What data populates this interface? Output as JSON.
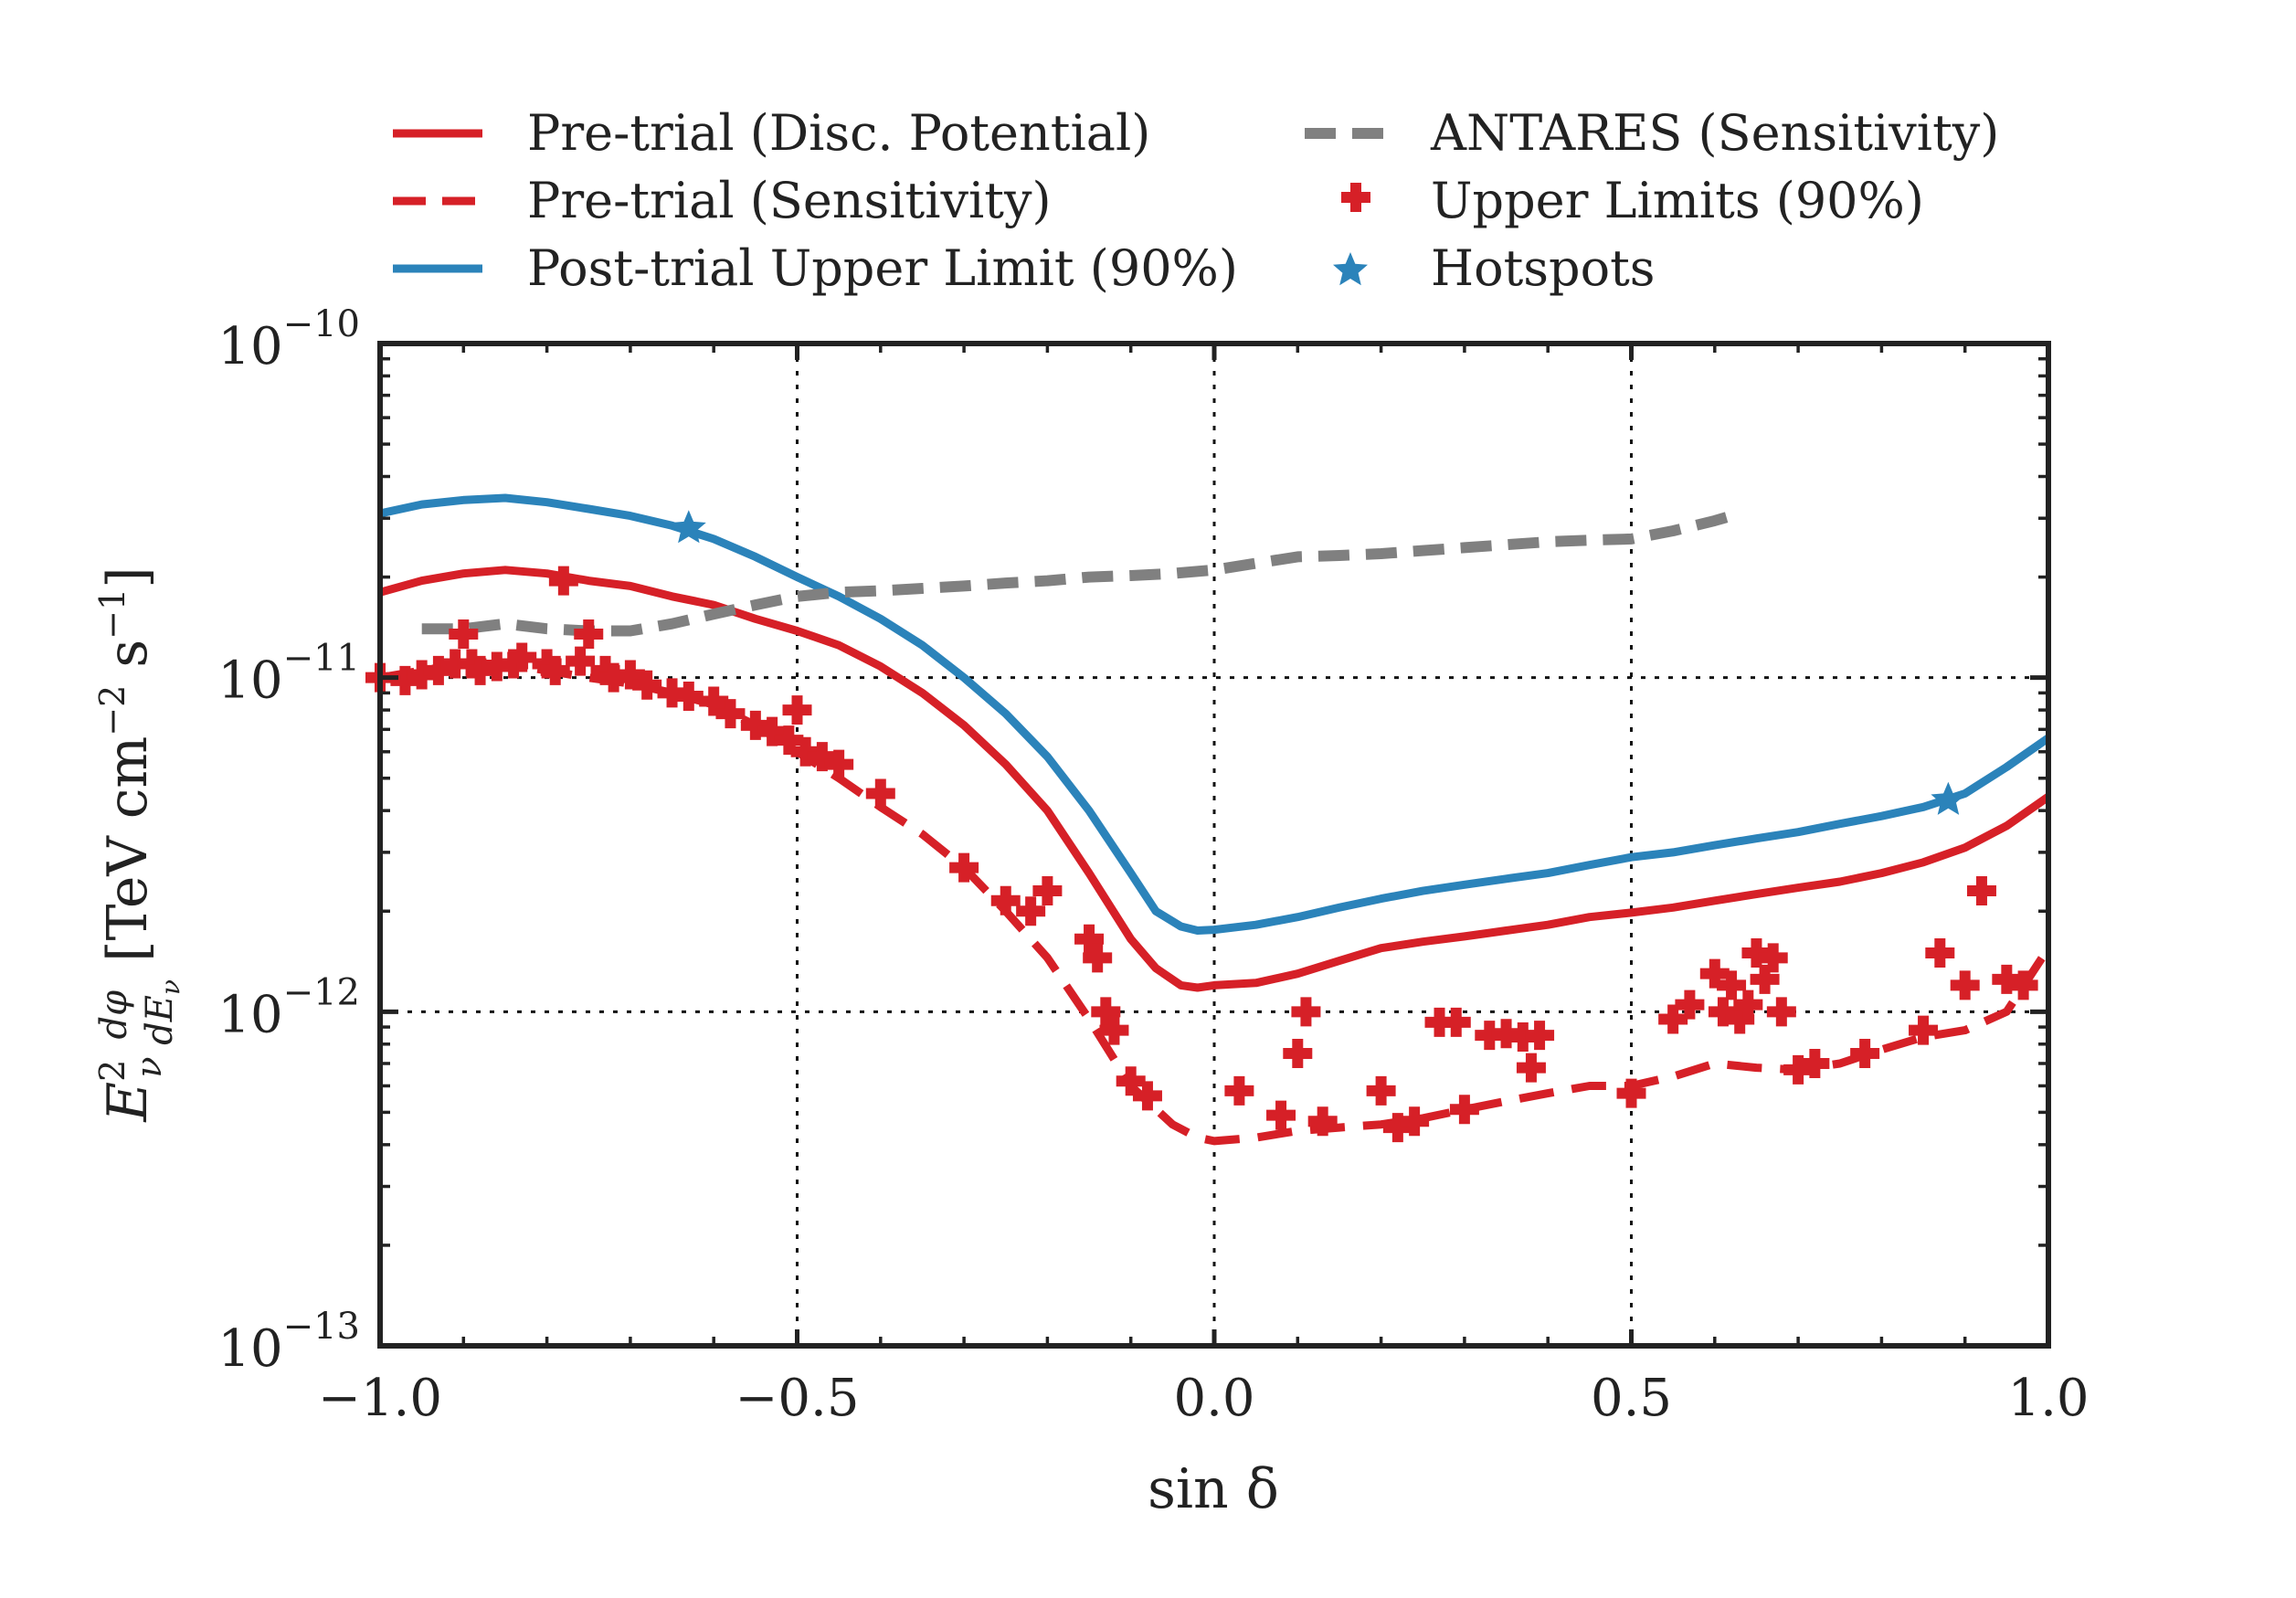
{
  "chart_data": {
    "type": "line",
    "x_scale": "linear",
    "y_scale": "log",
    "xlim": [
      -1.0,
      1.0
    ],
    "ylim": [
      1e-13,
      1e-10
    ],
    "grid": true,
    "legend_position": "top, above plot, two columns",
    "xlabel": "sin δ",
    "ylabel_parts": {
      "flux": "E",
      "exp": "2",
      "sub": "ν",
      "frac_num": "dφ",
      "frac_den_d": "dE",
      "frac_den_sub": "ν",
      "units_open": "[",
      "units_text": "TeV cm",
      "units_exp1": "−2",
      "units_s": " s",
      "units_exp2": "−1",
      "units_close": "]"
    },
    "x_ticks": [
      {
        "value": -1.0,
        "label": "−1.0"
      },
      {
        "value": -0.5,
        "label": "−0.5"
      },
      {
        "value": 0.0,
        "label": "0.0"
      },
      {
        "value": 0.5,
        "label": "0.5"
      },
      {
        "value": 1.0,
        "label": "1.0"
      }
    ],
    "y_ticks": [
      {
        "value": 1e-13,
        "base": "10",
        "exp": "−13"
      },
      {
        "value": 1e-12,
        "base": "10",
        "exp": "−12"
      },
      {
        "value": 1e-11,
        "base": "10",
        "exp": "−11"
      },
      {
        "value": 1e-10,
        "base": "10",
        "exp": "−10"
      }
    ],
    "series": [
      {
        "name": "Pre-trial (Disc. Potential)",
        "style": "solid",
        "color": "#d62027",
        "x": [
          -1.0,
          -0.95,
          -0.9,
          -0.85,
          -0.8,
          -0.75,
          -0.7,
          -0.65,
          -0.6,
          -0.55,
          -0.5,
          -0.45,
          -0.4,
          -0.35,
          -0.3,
          -0.25,
          -0.2,
          -0.15,
          -0.1,
          -0.07,
          -0.04,
          -0.02,
          0.0,
          0.05,
          0.1,
          0.15,
          0.2,
          0.25,
          0.3,
          0.35,
          0.4,
          0.45,
          0.5,
          0.55,
          0.6,
          0.65,
          0.7,
          0.75,
          0.8,
          0.85,
          0.9,
          0.95,
          1.0
        ],
        "y": [
          1.8e-11,
          1.95e-11,
          2.05e-11,
          2.1e-11,
          2.05e-11,
          1.95e-11,
          1.88e-11,
          1.75e-11,
          1.65e-11,
          1.5e-11,
          1.38e-11,
          1.25e-11,
          1.08e-11,
          9e-12,
          7.2e-12,
          5.5e-12,
          4e-12,
          2.6e-12,
          1.65e-12,
          1.35e-12,
          1.2e-12,
          1.18e-12,
          1.2e-12,
          1.22e-12,
          1.3e-12,
          1.42e-12,
          1.55e-12,
          1.62e-12,
          1.68e-12,
          1.75e-12,
          1.82e-12,
          1.92e-12,
          1.98e-12,
          2.05e-12,
          2.15e-12,
          2.25e-12,
          2.35e-12,
          2.45e-12,
          2.6e-12,
          2.8e-12,
          3.1e-12,
          3.6e-12,
          4.4e-12
        ]
      },
      {
        "name": "Pre-trial (Sensitivity)",
        "style": "dashed",
        "color": "#d62027",
        "x": [
          -1.0,
          -0.95,
          -0.9,
          -0.85,
          -0.8,
          -0.75,
          -0.7,
          -0.65,
          -0.6,
          -0.55,
          -0.5,
          -0.45,
          -0.4,
          -0.35,
          -0.3,
          -0.25,
          -0.2,
          -0.15,
          -0.1,
          -0.05,
          -0.02,
          0.0,
          0.05,
          0.1,
          0.15,
          0.2,
          0.25,
          0.3,
          0.35,
          0.4,
          0.45,
          0.5,
          0.55,
          0.6,
          0.65,
          0.7,
          0.75,
          0.8,
          0.85,
          0.9,
          0.95,
          1.0
        ],
        "y": [
          1e-11,
          1.05e-11,
          1.1e-11,
          1.1e-11,
          1.05e-11,
          1e-11,
          9.6e-12,
          9e-12,
          8.3e-12,
          7.2e-12,
          6e-12,
          5e-12,
          4.1e-12,
          3.4e-12,
          2.7e-12,
          2e-12,
          1.45e-12,
          9.5e-13,
          6e-13,
          4.6e-13,
          4.2e-13,
          4.1e-13,
          4.2e-13,
          4.4e-13,
          4.5e-13,
          4.6e-13,
          4.8e-13,
          5.1e-13,
          5.4e-13,
          5.7e-13,
          6e-13,
          6e-13,
          6.4e-13,
          7e-13,
          6.8e-13,
          6.7e-13,
          7e-13,
          7.7e-13,
          8.4e-13,
          8.8e-13,
          1e-12,
          1.55e-12
        ]
      },
      {
        "name": "Post-trial Upper Limit (90%)",
        "style": "solid",
        "color": "#2b83ba",
        "x": [
          -1.0,
          -0.95,
          -0.9,
          -0.85,
          -0.8,
          -0.75,
          -0.7,
          -0.65,
          -0.6,
          -0.55,
          -0.5,
          -0.45,
          -0.4,
          -0.35,
          -0.3,
          -0.25,
          -0.2,
          -0.15,
          -0.1,
          -0.07,
          -0.04,
          -0.02,
          0.0,
          0.05,
          0.1,
          0.15,
          0.2,
          0.25,
          0.3,
          0.35,
          0.4,
          0.45,
          0.5,
          0.55,
          0.6,
          0.65,
          0.7,
          0.75,
          0.8,
          0.85,
          0.9,
          0.95,
          1.0
        ],
        "y": [
          3.1e-11,
          3.3e-11,
          3.4e-11,
          3.45e-11,
          3.35e-11,
          3.2e-11,
          3.05e-11,
          2.85e-11,
          2.6e-11,
          2.3e-11,
          2e-11,
          1.75e-11,
          1.5e-11,
          1.25e-11,
          1e-11,
          7.8e-12,
          5.8e-12,
          4e-12,
          2.6e-12,
          2e-12,
          1.8e-12,
          1.75e-12,
          1.76e-12,
          1.82e-12,
          1.92e-12,
          2.05e-12,
          2.18e-12,
          2.3e-12,
          2.4e-12,
          2.5e-12,
          2.6e-12,
          2.75e-12,
          2.9e-12,
          3e-12,
          3.15e-12,
          3.3e-12,
          3.45e-12,
          3.65e-12,
          3.85e-12,
          4.1e-12,
          4.5e-12,
          5.4e-12,
          6.6e-12
        ]
      },
      {
        "name": "ANTARES (Sensitivity)",
        "style": "dashed",
        "color": "#808080",
        "x": [
          -0.95,
          -0.9,
          -0.85,
          -0.8,
          -0.75,
          -0.7,
          -0.65,
          -0.6,
          -0.55,
          -0.5,
          -0.45,
          -0.4,
          -0.35,
          -0.3,
          -0.25,
          -0.2,
          -0.15,
          -0.1,
          -0.05,
          0.0,
          0.05,
          0.1,
          0.15,
          0.2,
          0.25,
          0.3,
          0.35,
          0.4,
          0.45,
          0.5,
          0.55,
          0.6,
          0.62
        ],
        "y": [
          1.4e-11,
          1.4e-11,
          1.45e-11,
          1.4e-11,
          1.38e-11,
          1.38e-11,
          1.45e-11,
          1.55e-11,
          1.65e-11,
          1.75e-11,
          1.8e-11,
          1.82e-11,
          1.85e-11,
          1.88e-11,
          1.92e-11,
          1.95e-11,
          2e-11,
          2.02e-11,
          2.05e-11,
          2.1e-11,
          2.2e-11,
          2.3e-11,
          2.32e-11,
          2.35e-11,
          2.4e-11,
          2.45e-11,
          2.5e-11,
          2.55e-11,
          2.58e-11,
          2.6e-11,
          2.75e-11,
          2.95e-11,
          3.05e-11
        ]
      },
      {
        "name": "Upper Limits (90%)",
        "style": "markers-plus",
        "color": "#d62027",
        "x": [
          -1.0,
          -0.97,
          -0.95,
          -0.93,
          -0.91,
          -0.9,
          -0.89,
          -0.88,
          -0.86,
          -0.84,
          -0.83,
          -0.8,
          -0.79,
          -0.78,
          -0.76,
          -0.75,
          -0.73,
          -0.72,
          -0.7,
          -0.68,
          -0.65,
          -0.63,
          -0.6,
          -0.58,
          -0.55,
          -0.53,
          -0.51,
          -0.5,
          -0.49,
          -0.47,
          -0.45,
          -0.4,
          -0.3,
          -0.25,
          -0.22,
          -0.2,
          -0.15,
          -0.14,
          -0.13,
          -0.12,
          -0.1,
          -0.08,
          0.03,
          0.08,
          0.1,
          0.11,
          0.13,
          0.2,
          0.22,
          0.24,
          0.27,
          0.29,
          0.3,
          0.33,
          0.35,
          0.37,
          0.38,
          0.39,
          0.5,
          0.55,
          0.57,
          0.6,
          0.61,
          0.62,
          0.63,
          0.64,
          0.65,
          0.66,
          0.67,
          0.68,
          0.7,
          0.72,
          0.78,
          0.85,
          0.87,
          0.9,
          0.92,
          0.95,
          0.97
        ],
        "y": [
          1e-11,
          9.8e-12,
          1.02e-11,
          1.05e-11,
          1.1e-11,
          1.35e-11,
          1.1e-11,
          1.05e-11,
          1.08e-11,
          1.1e-11,
          1.15e-11,
          1.1e-11,
          1.05e-11,
          1.95e-11,
          1.12e-11,
          1.35e-11,
          1.05e-11,
          1e-11,
          1.02e-11,
          9.5e-12,
          9e-12,
          8.8e-12,
          8.5e-12,
          7.8e-12,
          7.2e-12,
          6.9e-12,
          6.5e-12,
          8e-12,
          6e-12,
          5.8e-12,
          5.5e-12,
          4.5e-12,
          2.7e-12,
          2.15e-12,
          2e-12,
          2.3e-12,
          1.65e-12,
          1.45e-12,
          1e-12,
          8.8e-13,
          6.2e-13,
          5.6e-13,
          5.8e-13,
          4.9e-13,
          7.5e-13,
          1e-12,
          4.7e-13,
          5.8e-13,
          4.5e-13,
          4.7e-13,
          9.3e-13,
          9.3e-13,
          5.1e-13,
          8.5e-13,
          8.6e-13,
          8.4e-13,
          6.8e-13,
          8.5e-13,
          5.7e-13,
          9.5e-13,
          1.05e-12,
          1.3e-12,
          1e-12,
          1.2e-12,
          9.5e-13,
          1.05e-12,
          1.5e-12,
          1.25e-12,
          1.45e-12,
          1e-12,
          6.7e-13,
          7e-13,
          7.5e-13,
          8.8e-13,
          1.5e-12,
          1.2e-12,
          2.3e-12,
          1.25e-12,
          1.2e-12
        ]
      },
      {
        "name": "Hotspots",
        "style": "markers-star",
        "color": "#2b83ba",
        "x": [
          -0.63,
          0.88
        ],
        "y": [
          2.8e-11,
          4.3e-12
        ]
      }
    ]
  }
}
